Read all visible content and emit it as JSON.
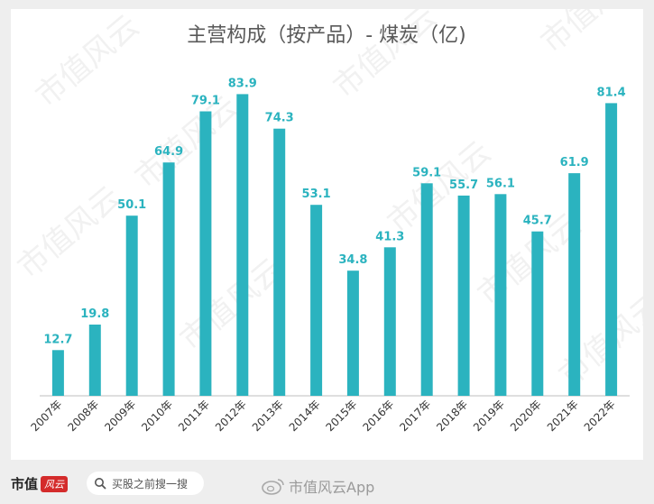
{
  "chart_data": {
    "type": "bar",
    "title": "主营构成（按产品）- 煤炭（亿)",
    "categories": [
      "2007年",
      "2008年",
      "2009年",
      "2010年",
      "2011年",
      "2012年",
      "2013年",
      "2014年",
      "2015年",
      "2016年",
      "2017年",
      "2018年",
      "2019年",
      "2020年",
      "2021年",
      "2022年"
    ],
    "values": [
      12.7,
      19.8,
      50.1,
      64.9,
      79.1,
      83.9,
      74.3,
      53.1,
      34.8,
      41.3,
      59.1,
      55.7,
      56.1,
      45.7,
      61.9,
      81.4
    ],
    "ylim": [
      0,
      85
    ],
    "xlabel": "",
    "ylabel": "",
    "bar_color": "#2bb3bf",
    "label_color": "#2bb3bf",
    "grid": false
  },
  "watermark": "市值风云",
  "footer": {
    "brand": "市值",
    "brand_badge": "风云",
    "search_text": "买股之前搜一搜",
    "weibo_text": "市值风云App"
  },
  "colors": {
    "background": "#eeeeee",
    "panel": "#ffffff",
    "axis": "#bfbfbf"
  }
}
